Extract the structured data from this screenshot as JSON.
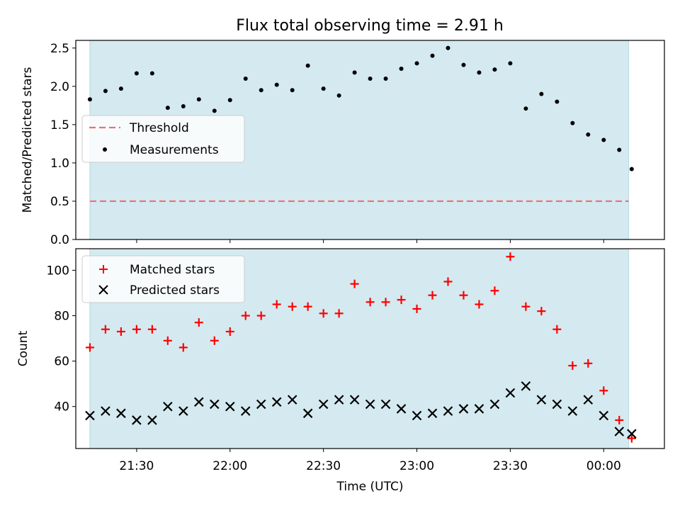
{
  "figure": {
    "title": "Flux total observing time = 2.91 h"
  },
  "chart_data": [
    {
      "type": "scatter",
      "xlabel": "",
      "ylabel": "Matched/Predicted stars",
      "ylim": [
        0,
        2.6
      ],
      "yticks": [
        "0.0",
        "0.5",
        "1.0",
        "1.5",
        "2.0",
        "2.5"
      ],
      "grid": false,
      "legend_position": "center-left",
      "shaded_span": {
        "start": "21:15",
        "end": "00:08",
        "color": "#d4eaf0"
      },
      "threshold": {
        "name": "Threshold",
        "value": 0.5,
        "color": "#f07070"
      },
      "series": [
        {
          "name": "Measurements",
          "marker": "dot",
          "color": "#000000",
          "x": [
            "21:15",
            "21:20",
            "21:25",
            "21:30",
            "21:35",
            "21:40",
            "21:45",
            "21:50",
            "21:55",
            "22:00",
            "22:05",
            "22:10",
            "22:15",
            "22:20",
            "22:25",
            "22:30",
            "22:35",
            "22:40",
            "22:45",
            "22:50",
            "22:55",
            "23:00",
            "23:05",
            "23:10",
            "23:15",
            "23:20",
            "23:25",
            "23:30",
            "23:35",
            "23:40",
            "23:45",
            "23:50",
            "23:55",
            "00:00",
            "00:05",
            "00:09"
          ],
          "y": [
            1.83,
            1.94,
            1.97,
            2.17,
            2.17,
            1.72,
            1.74,
            1.83,
            1.68,
            1.82,
            2.1,
            1.95,
            2.02,
            1.95,
            2.27,
            1.97,
            1.88,
            2.18,
            2.1,
            2.1,
            2.23,
            2.3,
            2.4,
            2.5,
            2.28,
            2.18,
            2.22,
            2.3,
            1.71,
            1.9,
            1.8,
            1.52,
            1.37,
            1.3,
            1.17,
            0.92
          ]
        }
      ]
    },
    {
      "type": "scatter",
      "xlabel": "Time (UTC)",
      "ylabel": "Count",
      "ylim": [
        21.5,
        109.5
      ],
      "yticks": [
        "40",
        "60",
        "80",
        "100"
      ],
      "xticks": [
        "21:30",
        "22:00",
        "22:30",
        "23:00",
        "23:30",
        "00:00"
      ],
      "grid": false,
      "legend_position": "top-left",
      "shaded_span": {
        "start": "21:15",
        "end": "00:08",
        "color": "#d4eaf0"
      },
      "series": [
        {
          "name": "Matched stars",
          "marker": "plus",
          "color": "#ff0000",
          "x": [
            "21:15",
            "21:20",
            "21:25",
            "21:30",
            "21:35",
            "21:40",
            "21:45",
            "21:50",
            "21:55",
            "22:00",
            "22:05",
            "22:10",
            "22:15",
            "22:20",
            "22:25",
            "22:30",
            "22:35",
            "22:40",
            "22:45",
            "22:50",
            "22:55",
            "23:00",
            "23:05",
            "23:10",
            "23:15",
            "23:20",
            "23:25",
            "23:30",
            "23:35",
            "23:40",
            "23:45",
            "23:50",
            "23:55",
            "00:00",
            "00:05",
            "00:09"
          ],
          "y": [
            66,
            74,
            73,
            74,
            74,
            69,
            66,
            77,
            69,
            73,
            80,
            80,
            85,
            84,
            84,
            81,
            81,
            94,
            86,
            86,
            87,
            83,
            89,
            95,
            89,
            85,
            91,
            106,
            84,
            82,
            74,
            58,
            59,
            47,
            34,
            26
          ]
        },
        {
          "name": "Predicted stars",
          "marker": "x",
          "color": "#000000",
          "x": [
            "21:15",
            "21:20",
            "21:25",
            "21:30",
            "21:35",
            "21:40",
            "21:45",
            "21:50",
            "21:55",
            "22:00",
            "22:05",
            "22:10",
            "22:15",
            "22:20",
            "22:25",
            "22:30",
            "22:35",
            "22:40",
            "22:45",
            "22:50",
            "22:55",
            "23:00",
            "23:05",
            "23:10",
            "23:15",
            "23:20",
            "23:25",
            "23:30",
            "23:35",
            "23:40",
            "23:45",
            "23:50",
            "23:55",
            "00:00",
            "00:05",
            "00:09"
          ],
          "y": [
            36,
            38,
            37,
            34,
            34,
            40,
            38,
            42,
            41,
            40,
            38,
            41,
            42,
            43,
            37,
            41,
            43,
            43,
            41,
            41,
            39,
            36,
            37,
            38,
            39,
            39,
            41,
            46,
            49,
            43,
            41,
            38,
            43,
            36,
            29,
            28
          ]
        }
      ]
    }
  ]
}
